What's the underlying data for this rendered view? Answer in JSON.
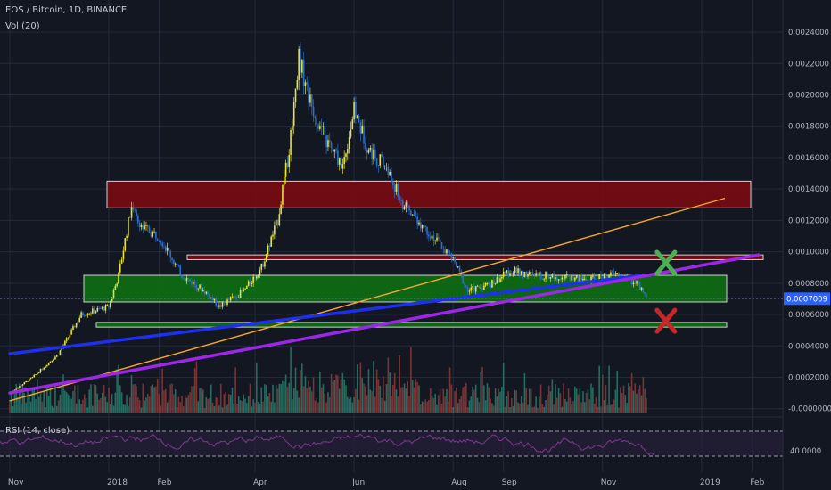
{
  "header": {
    "symbol_line": "EOS / Bitcoin, 1D, BINANCE",
    "volume_line": "Vol (20)",
    "rsi_line": "RSI (14, close)"
  },
  "current_price": "0.0007009",
  "colors": {
    "background": "#131722",
    "grid": "#242a3a",
    "candle_up": "#e8e23a",
    "candle_down": "#2a6fd1",
    "vol_up": "#2a7a6a",
    "vol_down": "#8a3a3a",
    "red_zone": "#7a0a12",
    "green_zone": "#0e6e12",
    "orange_line": "#f5a623",
    "blue_line": "#1f2ff0",
    "purple_line": "#9c27e8",
    "rsi_line": "#7a3c8c",
    "price_tag": "#2962ff"
  },
  "chart_data": {
    "type": "candlestick",
    "title": "EOS / Bitcoin, 1D, BINANCE",
    "x_ticks": [
      "Nov",
      "2018",
      "Feb",
      "Apr",
      "Jun",
      "Aug",
      "Sep",
      "Nov",
      "2019",
      "Feb"
    ],
    "y_ticks": [
      "0.0024000",
      "0.0022000",
      "0.0020000",
      "0.0018000",
      "0.0016000",
      "0.0014000",
      "0.0012000",
      "0.0010000",
      "0.0008000",
      "0.0006000",
      "0.0004000",
      "0.0002000",
      "-0.0000000"
    ],
    "ylim": [
      -3e-05,
      0.00248
    ],
    "price_path": [
      [
        "2017-11-01",
        0.0001
      ],
      [
        "2017-11-15",
        0.0002
      ],
      [
        "2017-12-01",
        0.00035
      ],
      [
        "2017-12-15",
        0.0006
      ],
      [
        "2018-01-01",
        0.00065
      ],
      [
        "2018-01-07",
        0.00085
      ],
      [
        "2018-01-15",
        0.0013
      ],
      [
        "2018-01-22",
        0.00115
      ],
      [
        "2018-02-01",
        0.0011
      ],
      [
        "2018-02-15",
        0.00085
      ],
      [
        "2018-03-01",
        0.00075
      ],
      [
        "2018-03-10",
        0.00065
      ],
      [
        "2018-03-25",
        0.00075
      ],
      [
        "2018-04-05",
        0.0009
      ],
      [
        "2018-04-15",
        0.0012
      ],
      [
        "2018-04-22",
        0.00165
      ],
      [
        "2018-04-28",
        0.00225
      ],
      [
        "2018-05-05",
        0.00195
      ],
      [
        "2018-05-15",
        0.0017
      ],
      [
        "2018-05-25",
        0.00155
      ],
      [
        "2018-06-01",
        0.0019
      ],
      [
        "2018-06-10",
        0.00165
      ],
      [
        "2018-06-20",
        0.00155
      ],
      [
        "2018-07-01",
        0.0013
      ],
      [
        "2018-07-15",
        0.00115
      ],
      [
        "2018-08-01",
        0.00095
      ],
      [
        "2018-08-10",
        0.00075
      ],
      [
        "2018-08-25",
        0.0008
      ],
      [
        "2018-09-05",
        0.00088
      ],
      [
        "2018-09-20",
        0.00085
      ],
      [
        "2018-10-10",
        0.00084
      ],
      [
        "2018-10-25",
        0.00082
      ],
      [
        "2018-11-10",
        0.00086
      ],
      [
        "2018-11-22",
        0.0008
      ],
      [
        "2018-11-28",
        0.0007
      ]
    ],
    "annotations": {
      "red_zone_upper": [
        0.00128,
        0.00145
      ],
      "red_zone_lower": [
        0.00095,
        0.00098
      ],
      "green_zone_upper": [
        0.00068,
        0.00085
      ],
      "green_zone_lower": [
        0.00052,
        0.00055
      ],
      "orange_trendline": [
        [
          "2017-11-01",
          5e-05
        ],
        [
          "2019-01-15",
          0.00134
        ]
      ],
      "blue_trendline": [
        [
          "2017-11-01",
          0.00035
        ],
        [
          "2018-11-25",
          0.00085
        ]
      ],
      "purple_trendline": [
        [
          "2017-11-01",
          0.0001
        ],
        [
          "2019-02-05",
          0.00098
        ]
      ],
      "green_check_at": [
        "2018-12-10",
        0.00093
      ],
      "red_cross_at": [
        "2018-12-10",
        0.00056
      ]
    },
    "rsi": {
      "label": "RSI (14, close)",
      "tick": "40.0000",
      "upper_band": 70,
      "lower_band": 30
    }
  }
}
